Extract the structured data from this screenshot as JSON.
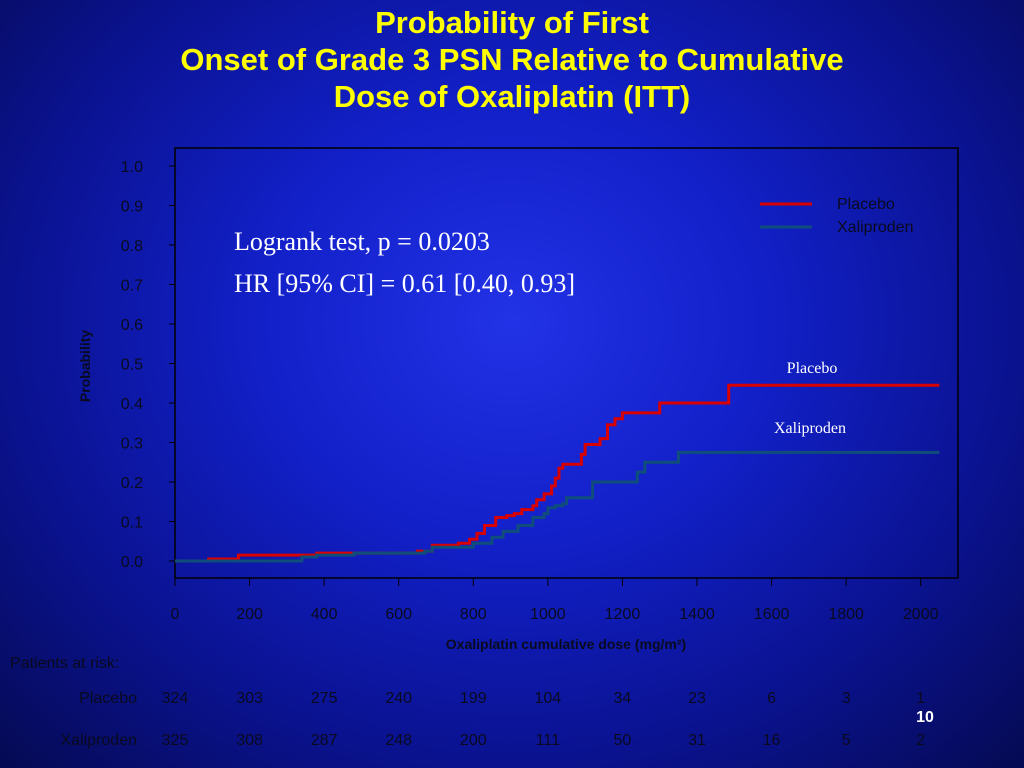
{
  "slide": {
    "title_lines": [
      "Probability of First",
      "Onset of Grade 3 PSN Relative to Cumulative",
      "Dose of Oxaliplatin (ITT)"
    ],
    "page_number": "10"
  },
  "annotation": {
    "line1": "Logrank test, p = 0.0203",
    "line2": "HR [95% CI] = 0.61 [0.40, 0.93]"
  },
  "curve_labels": {
    "placebo": "Placebo",
    "xaliproden": "Xaliproden"
  },
  "colors": {
    "placebo": "#d90000",
    "xaliproden": "#0f4d7a",
    "title": "#ffff00",
    "background": "#1220c8"
  },
  "chart_data": {
    "type": "line",
    "step": true,
    "xlabel": "Oxaliplatin cumulative dose (mg/m²)",
    "ylabel": "Probability",
    "xlim": [
      0,
      2100
    ],
    "ylim": [
      0,
      1.0
    ],
    "xticks": [
      0,
      200,
      400,
      600,
      800,
      1000,
      1200,
      1400,
      1600,
      1800,
      2000
    ],
    "xtick_labels": [
      "0",
      "200",
      "400",
      "600",
      "800",
      "1000",
      "1200",
      "1400",
      "1600",
      "1800",
      "2000"
    ],
    "yticks": [
      0,
      0.1,
      0.2,
      0.3,
      0.4,
      0.5,
      0.6,
      0.7,
      0.8,
      0.9,
      1.0
    ],
    "ytick_labels": [
      "0.0",
      "0.1",
      "0.2",
      "0.3",
      "0.4",
      "0.5",
      "0.6",
      "0.7",
      "0.8",
      "0.9",
      "1.0"
    ],
    "grid": false,
    "legend_position": "top-right",
    "series": [
      {
        "name": "Placebo",
        "color": "#d90000",
        "points": [
          [
            0,
            0.0
          ],
          [
            90,
            0.005
          ],
          [
            170,
            0.015
          ],
          [
            380,
            0.02
          ],
          [
            650,
            0.025
          ],
          [
            690,
            0.04
          ],
          [
            760,
            0.045
          ],
          [
            790,
            0.055
          ],
          [
            810,
            0.07
          ],
          [
            830,
            0.09
          ],
          [
            860,
            0.11
          ],
          [
            890,
            0.115
          ],
          [
            910,
            0.12
          ],
          [
            930,
            0.13
          ],
          [
            960,
            0.14
          ],
          [
            970,
            0.155
          ],
          [
            990,
            0.17
          ],
          [
            1010,
            0.19
          ],
          [
            1020,
            0.21
          ],
          [
            1030,
            0.235
          ],
          [
            1040,
            0.245
          ],
          [
            1090,
            0.27
          ],
          [
            1100,
            0.295
          ],
          [
            1140,
            0.31
          ],
          [
            1160,
            0.345
          ],
          [
            1180,
            0.36
          ],
          [
            1200,
            0.375
          ],
          [
            1300,
            0.4
          ],
          [
            1485,
            0.445
          ],
          [
            2050,
            0.445
          ]
        ]
      },
      {
        "name": "Xaliproden",
        "color": "#0f4d7a",
        "points": [
          [
            0,
            0.0
          ],
          [
            340,
            0.01
          ],
          [
            380,
            0.015
          ],
          [
            480,
            0.02
          ],
          [
            670,
            0.025
          ],
          [
            690,
            0.035
          ],
          [
            800,
            0.045
          ],
          [
            850,
            0.06
          ],
          [
            880,
            0.075
          ],
          [
            920,
            0.09
          ],
          [
            960,
            0.11
          ],
          [
            990,
            0.12
          ],
          [
            1000,
            0.135
          ],
          [
            1020,
            0.14
          ],
          [
            1040,
            0.145
          ],
          [
            1050,
            0.16
          ],
          [
            1120,
            0.2
          ],
          [
            1240,
            0.225
          ],
          [
            1260,
            0.25
          ],
          [
            1350,
            0.275
          ],
          [
            2050,
            0.275
          ]
        ]
      }
    ]
  },
  "risk_table": {
    "header": "Patients at risk:",
    "dose_points": [
      0,
      200,
      400,
      600,
      800,
      1000,
      1200,
      1400,
      1600,
      1800,
      2000
    ],
    "rows": [
      {
        "label": "Placebo",
        "values": [
          "324",
          "303",
          "275",
          "240",
          "199",
          "104",
          "34",
          "23",
          "6",
          "3",
          "1"
        ]
      },
      {
        "label": "Xaliproden",
        "values": [
          "325",
          "308",
          "287",
          "248",
          "200",
          "111",
          "50",
          "31",
          "16",
          "5",
          "2"
        ]
      }
    ]
  }
}
